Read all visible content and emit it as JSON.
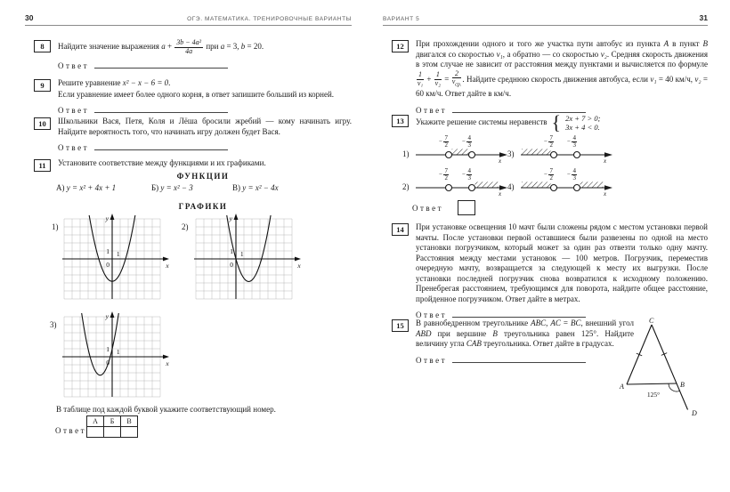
{
  "shared": {
    "answer_label": "Ответ"
  },
  "left_page": {
    "page_number": "30",
    "running_title": "ОГЭ. МАТЕМАТИКА. ТРЕНИРОВОЧНЫЕ ВАРИАНТЫ",
    "problems": {
      "p8": {
        "number": "8",
        "segments": [
          {
            "t": "Найдите значение выражения  "
          },
          {
            "m": "a"
          },
          {
            "t": " + "
          },
          {
            "f": {
              "num": "3b − 4a²",
              "den": "4a"
            }
          },
          {
            "t": "  при  "
          },
          {
            "m": "a"
          },
          {
            "t": " = 3,  "
          },
          {
            "m": "b"
          },
          {
            "t": " = 20."
          }
        ]
      },
      "p9": {
        "number": "9",
        "segments": [
          {
            "t": "Решите уравнение  "
          },
          {
            "m": "x² − x − 6 = 0"
          },
          {
            "t": "."
          }
        ],
        "line2": "Если уравнение имеет более одного корня, в ответ запишите больший из корней."
      },
      "p10": {
        "number": "10",
        "text": "Школьники Вася, Петя, Коля и Лёша бросили жребий — кому начинать игру. Найдите вероятность того, что начинать игру должен будет Вася."
      },
      "p11": {
        "number": "11",
        "intro": "Установите соответствие между функциями и их графиками.",
        "functions_title": "ФУНКЦИИ",
        "functions": [
          {
            "label": "А)",
            "formula": "y = x² + 4x + 1"
          },
          {
            "label": "Б)",
            "formula": "y = x² − 3"
          },
          {
            "label": "В)",
            "formula": "y = x² − 4x"
          }
        ],
        "graphs_title": "ГРАФИКИ",
        "graph_axis_labels": {
          "y_axis": "y",
          "x_axis": "x",
          "origin": "0",
          "x_unit": "1",
          "y_unit": "1"
        },
        "graphs": [
          {
            "label": "1)",
            "a": 1.0,
            "h": 0,
            "k": -2.8,
            "axisCol": 6,
            "axisRow": 5,
            "xmin": -2.9,
            "xmax": 2.9
          },
          {
            "label": "2)",
            "a": 1.1,
            "h": 1.6,
            "k": -2.82,
            "axisCol": 5,
            "axisRow": 5,
            "xmin": -1.4,
            "xmax": 4.6
          },
          {
            "label": "3)",
            "a": 1.45,
            "h": -1.5,
            "k": -2.3,
            "axisCol": 6,
            "axisRow": 5,
            "xmin": -4.1,
            "xmax": 1.3
          }
        ],
        "table_note": "В таблице под каждой буквой укажите соответствующий номер.",
        "table_headers": [
          "А",
          "Б",
          "В"
        ]
      }
    }
  },
  "right_page": {
    "page_number": "31",
    "running_title": "ВАРИАНТ 5",
    "problems": {
      "p12": {
        "number": "12",
        "segments": [
          {
            "t": "При прохождении одного и того же участка пути автобус из пункта "
          },
          {
            "m": "A"
          },
          {
            "t": " в пункт "
          },
          {
            "m": "B"
          },
          {
            "t": " двигался со скоростью "
          },
          {
            "m": "v₁"
          },
          {
            "t": ", а обратно — со скоростью "
          },
          {
            "m": "v₂"
          },
          {
            "t": ". Средняя скорость движения в этом случае не зависит от расстояния между пунктами и вычисляется по формуле "
          },
          {
            "f": {
              "num": "1",
              "den": "v₁"
            }
          },
          {
            "t": " + "
          },
          {
            "f": {
              "num": "1",
              "den": "v₂"
            }
          },
          {
            "t": " = "
          },
          {
            "f": {
              "num": "2",
              "den": "v",
              "densub": "ср."
            }
          },
          {
            "t": ". Найдите среднюю скорость движения автобуса, если "
          },
          {
            "m": "v₁"
          },
          {
            "t": " = 40 км/ч, "
          },
          {
            "m": "v₂"
          },
          {
            "t": " = 60 км/ч. Ответ дайте в км/ч."
          }
        ]
      },
      "p13": {
        "number": "13",
        "intro": "Укажите решение системы неравенств",
        "system_lines": [
          "2x + 7 > 0;",
          "3x + 4 < 0."
        ],
        "axis_label": "x",
        "point1": {
          "sign": "−",
          "num": "7",
          "den": "2"
        },
        "point2": {
          "sign": "−",
          "num": "4",
          "den": "3"
        },
        "options": [
          {
            "label": "1)",
            "hatch": "between"
          },
          {
            "label": "2)",
            "hatch": "right"
          },
          {
            "label": "3)",
            "hatch": "left"
          },
          {
            "label": "4)",
            "hatch": "both"
          }
        ]
      },
      "p14": {
        "number": "14",
        "text": "При установке освещения 10 мачт были сложены рядом с местом установки первой мачты. После установки первой оставшиеся были развезены по одной на место установки погрузчиком, который может за один раз отвезти только одну мачту. Расстояния между местами установок — 100 метров. Погрузчик, переместив очередную мачту, возвращается за следующей к месту их выгрузки. После установки последней погрузчик снова возвратился к исходному положению. Пренебрегая расстоянием, требующимся для поворота, найдите общее расстояние, пройденное погрузчиком. Ответ дайте в метрах."
      },
      "p15": {
        "number": "15",
        "segments": [
          {
            "t": "В равнобедренном треугольнике "
          },
          {
            "m": "ABC"
          },
          {
            "t": ",  "
          },
          {
            "m": "AC"
          },
          {
            "t": " = "
          },
          {
            "m": "BC"
          },
          {
            "t": ",  внешний угол "
          },
          {
            "m": "ABD"
          },
          {
            "t": " при вершине "
          },
          {
            "m": "B"
          },
          {
            "t": " треугольника равен 125°. Найдите величину угла "
          },
          {
            "m": "CAB"
          },
          {
            "t": " треугольника. Ответ дайте в градусах."
          }
        ],
        "figure": {
          "a": "A",
          "b": "B",
          "c": "C",
          "d": "D",
          "angle": "125°"
        }
      }
    }
  }
}
